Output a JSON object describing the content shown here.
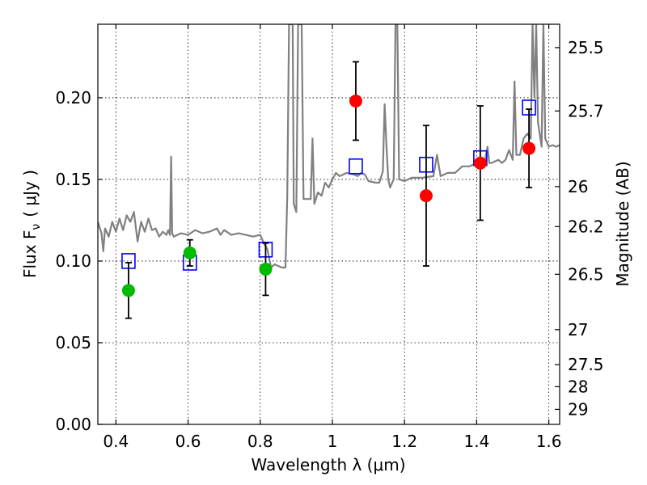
{
  "chart_data": {
    "type": "scatter",
    "xlabel": "Wavelength  λ (μm)",
    "ylabel": "Flux  F",
    "ylabel_sub": "ν",
    "ylabel_unit": "( μJy )",
    "y2label": "Magnitude (AB)",
    "xlim": [
      0.35,
      1.63
    ],
    "ylim": [
      0.0,
      0.245
    ],
    "grid": true,
    "x_ticks": [
      0.4,
      0.6,
      0.8,
      1.0,
      1.2,
      1.4,
      1.6
    ],
    "x_tick_labels": [
      "0.4",
      "0.6",
      "0.8",
      "1",
      "1.2",
      "1.4",
      "1.6"
    ],
    "y_ticks": [
      0.0,
      0.05,
      0.1,
      0.15,
      0.2
    ],
    "y_tick_labels": [
      "0.00",
      "0.05",
      "0.10",
      "0.15",
      "0.20"
    ],
    "y2_ticks": [
      {
        "label": "25.5",
        "flux": 0.2307
      },
      {
        "label": "25.7",
        "flux": 0.1919
      },
      {
        "label": "26",
        "flux": 0.1456
      },
      {
        "label": "26.2",
        "flux": 0.1211
      },
      {
        "label": "26.5",
        "flux": 0.0919
      },
      {
        "label": "27",
        "flux": 0.058
      },
      {
        "label": "27.5",
        "flux": 0.0366
      },
      {
        "label": "28",
        "flux": 0.0231
      },
      {
        "label": "29",
        "flux": 0.0092
      }
    ],
    "series": [
      {
        "color": "#808080",
        "marker": "line",
        "points": [
          [
            0.35,
            0.124
          ],
          [
            0.36,
            0.117
          ],
          [
            0.365,
            0.106
          ],
          [
            0.37,
            0.12
          ],
          [
            0.38,
            0.115
          ],
          [
            0.39,
            0.124
          ],
          [
            0.4,
            0.118
          ],
          [
            0.41,
            0.126
          ],
          [
            0.42,
            0.119
          ],
          [
            0.43,
            0.128
          ],
          [
            0.44,
            0.124
          ],
          [
            0.45,
            0.13
          ],
          [
            0.46,
            0.112
          ],
          [
            0.47,
            0.124
          ],
          [
            0.48,
            0.118
          ],
          [
            0.49,
            0.126
          ],
          [
            0.5,
            0.119
          ],
          [
            0.51,
            0.12
          ],
          [
            0.52,
            0.115
          ],
          [
            0.53,
            0.118
          ],
          [
            0.54,
            0.116
          ],
          [
            0.545,
            0.119
          ],
          [
            0.55,
            0.116
          ],
          [
            0.553,
            0.164
          ],
          [
            0.556,
            0.117
          ],
          [
            0.56,
            0.115
          ],
          [
            0.58,
            0.117
          ],
          [
            0.6,
            0.116
          ],
          [
            0.62,
            0.119
          ],
          [
            0.64,
            0.117
          ],
          [
            0.66,
            0.118
          ],
          [
            0.68,
            0.12
          ],
          [
            0.69,
            0.116
          ],
          [
            0.7,
            0.119
          ],
          [
            0.72,
            0.116
          ],
          [
            0.74,
            0.117
          ],
          [
            0.76,
            0.116
          ],
          [
            0.78,
            0.115
          ],
          [
            0.8,
            0.116
          ],
          [
            0.81,
            0.111
          ],
          [
            0.82,
            0.107
          ],
          [
            0.83,
            0.096
          ],
          [
            0.84,
            0.098
          ],
          [
            0.85,
            0.097
          ],
          [
            0.86,
            0.096
          ],
          [
            0.87,
            0.096
          ],
          [
            0.875,
            0.14
          ],
          [
            0.88,
            0.245
          ],
          [
            0.89,
            0.245
          ],
          [
            0.893,
            0.135
          ],
          [
            0.9,
            0.13
          ],
          [
            0.905,
            0.245
          ],
          [
            0.915,
            0.245
          ],
          [
            0.92,
            0.138
          ],
          [
            0.94,
            0.138
          ],
          [
            0.945,
            0.175
          ],
          [
            0.95,
            0.135
          ],
          [
            0.96,
            0.142
          ],
          [
            0.97,
            0.14
          ],
          [
            0.98,
            0.148
          ],
          [
            0.99,
            0.145
          ],
          [
            1.0,
            0.15
          ],
          [
            1.01,
            0.154
          ],
          [
            1.02,
            0.152
          ],
          [
            1.04,
            0.154
          ],
          [
            1.06,
            0.153
          ],
          [
            1.07,
            0.152
          ],
          [
            1.08,
            0.154
          ],
          [
            1.09,
            0.153
          ],
          [
            1.1,
            0.149
          ],
          [
            1.12,
            0.148
          ],
          [
            1.13,
            0.148
          ],
          [
            1.14,
            0.155
          ],
          [
            1.145,
            0.196
          ],
          [
            1.15,
            0.17
          ],
          [
            1.155,
            0.15
          ],
          [
            1.16,
            0.145
          ],
          [
            1.17,
            0.15
          ],
          [
            1.175,
            0.245
          ],
          [
            1.18,
            0.245
          ],
          [
            1.185,
            0.15
          ],
          [
            1.2,
            0.149
          ],
          [
            1.22,
            0.151
          ],
          [
            1.25,
            0.151
          ],
          [
            1.28,
            0.152
          ],
          [
            1.29,
            0.165
          ],
          [
            1.3,
            0.152
          ],
          [
            1.32,
            0.154
          ],
          [
            1.34,
            0.154
          ],
          [
            1.36,
            0.158
          ],
          [
            1.38,
            0.158
          ],
          [
            1.4,
            0.16
          ],
          [
            1.41,
            0.16
          ],
          [
            1.42,
            0.158
          ],
          [
            1.43,
            0.17
          ],
          [
            1.435,
            0.16
          ],
          [
            1.44,
            0.16
          ],
          [
            1.46,
            0.162
          ],
          [
            1.47,
            0.16
          ],
          [
            1.48,
            0.162
          ],
          [
            1.49,
            0.168
          ],
          [
            1.5,
            0.162
          ],
          [
            1.505,
            0.21
          ],
          [
            1.51,
            0.165
          ],
          [
            1.52,
            0.165
          ],
          [
            1.53,
            0.175
          ],
          [
            1.54,
            0.178
          ],
          [
            1.55,
            0.175
          ],
          [
            1.555,
            0.245
          ],
          [
            1.56,
            0.2
          ],
          [
            1.565,
            0.245
          ],
          [
            1.57,
            0.185
          ],
          [
            1.58,
            0.17
          ],
          [
            1.585,
            0.245
          ],
          [
            1.59,
            0.175
          ],
          [
            1.6,
            0.17
          ],
          [
            1.61,
            0.171
          ],
          [
            1.62,
            0.17
          ],
          [
            1.63,
            0.171
          ]
        ]
      },
      {
        "color": "#0000ff",
        "marker": "open-square",
        "points": [
          [
            0.435,
            0.1
          ],
          [
            0.605,
            0.099
          ],
          [
            0.815,
            0.107
          ],
          [
            1.065,
            0.158
          ],
          [
            1.26,
            0.159
          ],
          [
            1.41,
            0.163
          ],
          [
            1.545,
            0.194
          ]
        ]
      },
      {
        "color": "#00bb00",
        "marker": "circle",
        "points": [
          [
            0.435,
            0.082,
            0.017
          ],
          [
            0.605,
            0.105,
            0.008
          ],
          [
            0.815,
            0.095,
            0.016
          ]
        ]
      },
      {
        "color": "#ff0000",
        "marker": "circle",
        "points": [
          [
            1.065,
            0.198,
            0.024
          ],
          [
            1.26,
            0.14,
            0.043
          ],
          [
            1.41,
            0.16,
            0.035
          ],
          [
            1.545,
            0.169,
            0.024
          ]
        ]
      }
    ]
  }
}
